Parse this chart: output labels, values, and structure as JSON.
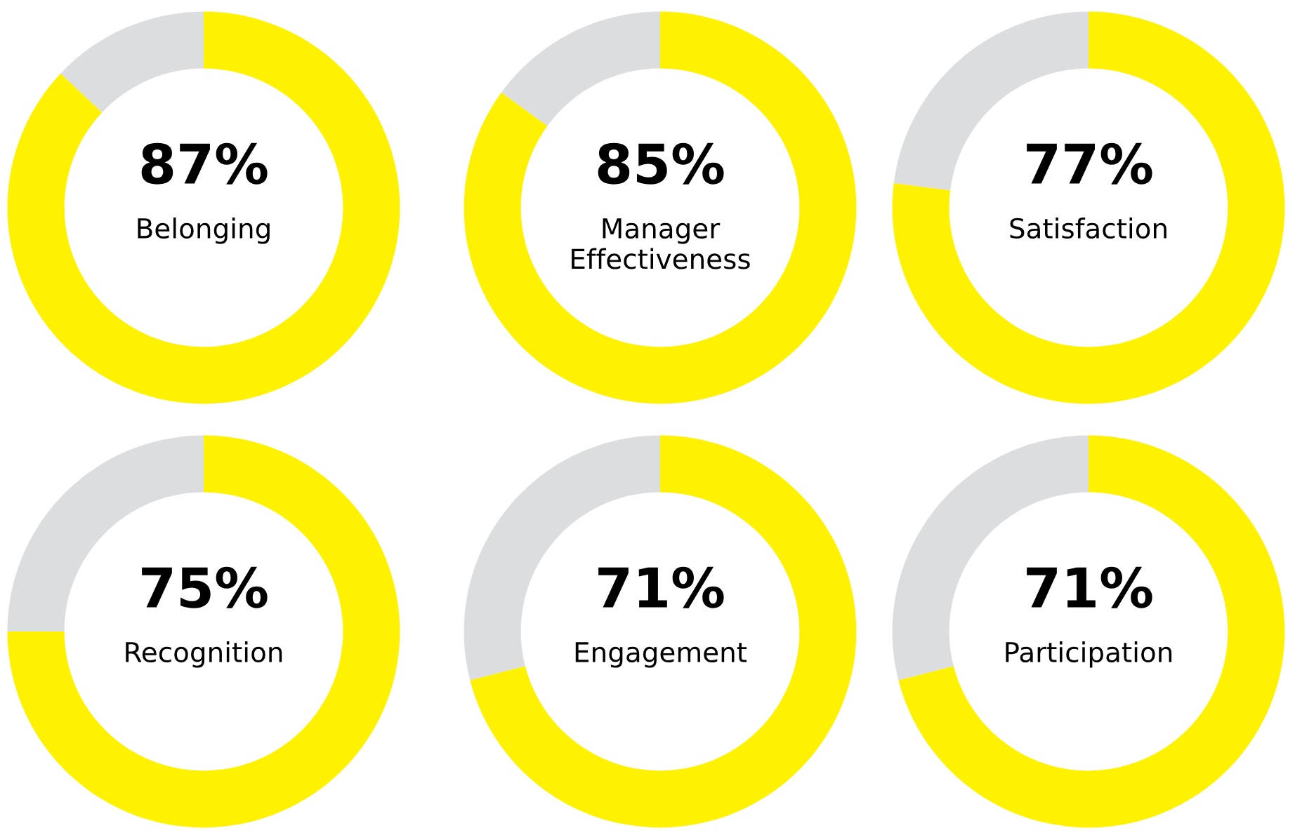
{
  "chart_data": [
    {
      "type": "donut",
      "categories": [
        "Belonging",
        null
      ],
      "values": [
        87,
        13
      ],
      "value_labels": [
        "87%",
        null
      ],
      "colors": [
        "#fff200",
        "#dcdddf"
      ]
    },
    {
      "type": "donut",
      "categories": [
        "Manager\nEffectiveness",
        null
      ],
      "values": [
        85,
        15
      ],
      "value_labels": [
        "85%",
        null
      ],
      "colors": [
        "#fff200",
        "#dcdddf"
      ]
    },
    {
      "type": "donut",
      "categories": [
        "Satisfaction",
        null
      ],
      "values": [
        77,
        23
      ],
      "value_labels": [
        "77%",
        null
      ],
      "colors": [
        "#fff200",
        "#dcdddf"
      ]
    },
    {
      "type": "donut",
      "categories": [
        "Recognition",
        null
      ],
      "values": [
        75,
        25
      ],
      "value_labels": [
        "75%",
        null
      ],
      "colors": [
        "#fff200",
        "#dcdddf"
      ]
    },
    {
      "type": "donut",
      "categories": [
        "Engagement",
        null
      ],
      "values": [
        71,
        29
      ],
      "value_labels": [
        "71%",
        null
      ],
      "colors": [
        "#fff200",
        "#dcdddf"
      ]
    },
    {
      "type": "donut",
      "categories": [
        "Participation",
        null
      ],
      "values": [
        71,
        29
      ],
      "value_labels": [
        "71%",
        null
      ],
      "colors": [
        "#fff200",
        "#dcdddf"
      ]
    }
  ]
}
